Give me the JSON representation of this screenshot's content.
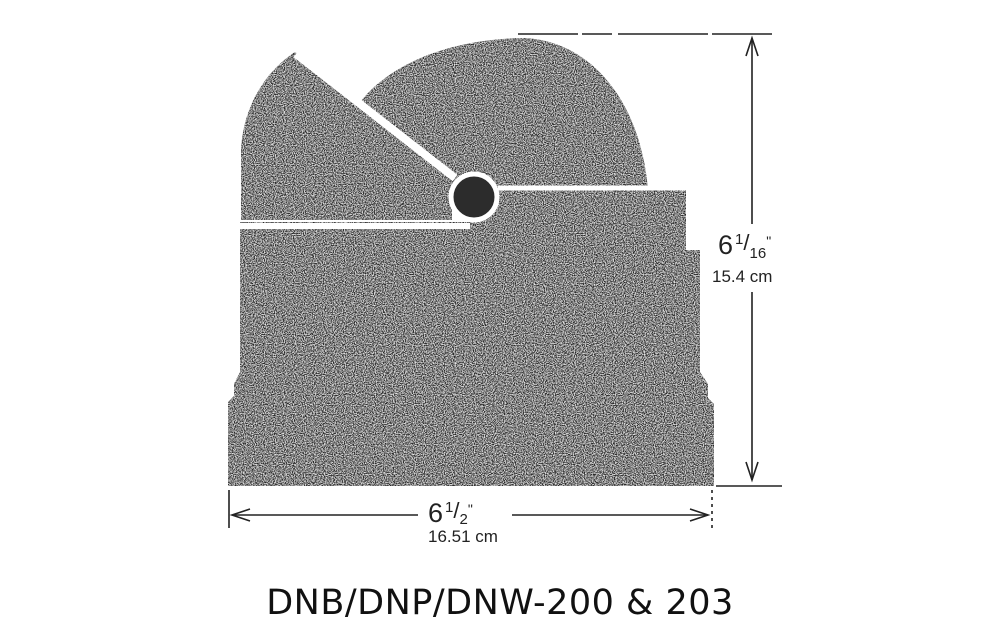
{
  "diagram": {
    "height_dimension": {
      "whole": "6",
      "numerator": "1",
      "denominator": "16",
      "inch_mark": "\"",
      "metric": "15.4 cm"
    },
    "width_dimension": {
      "whole": "6",
      "numerator": "1",
      "denominator": "2",
      "inch_mark": "\"",
      "metric": "16.51 cm"
    },
    "caption": "DNB/DNP/DNW-200 & 203"
  }
}
